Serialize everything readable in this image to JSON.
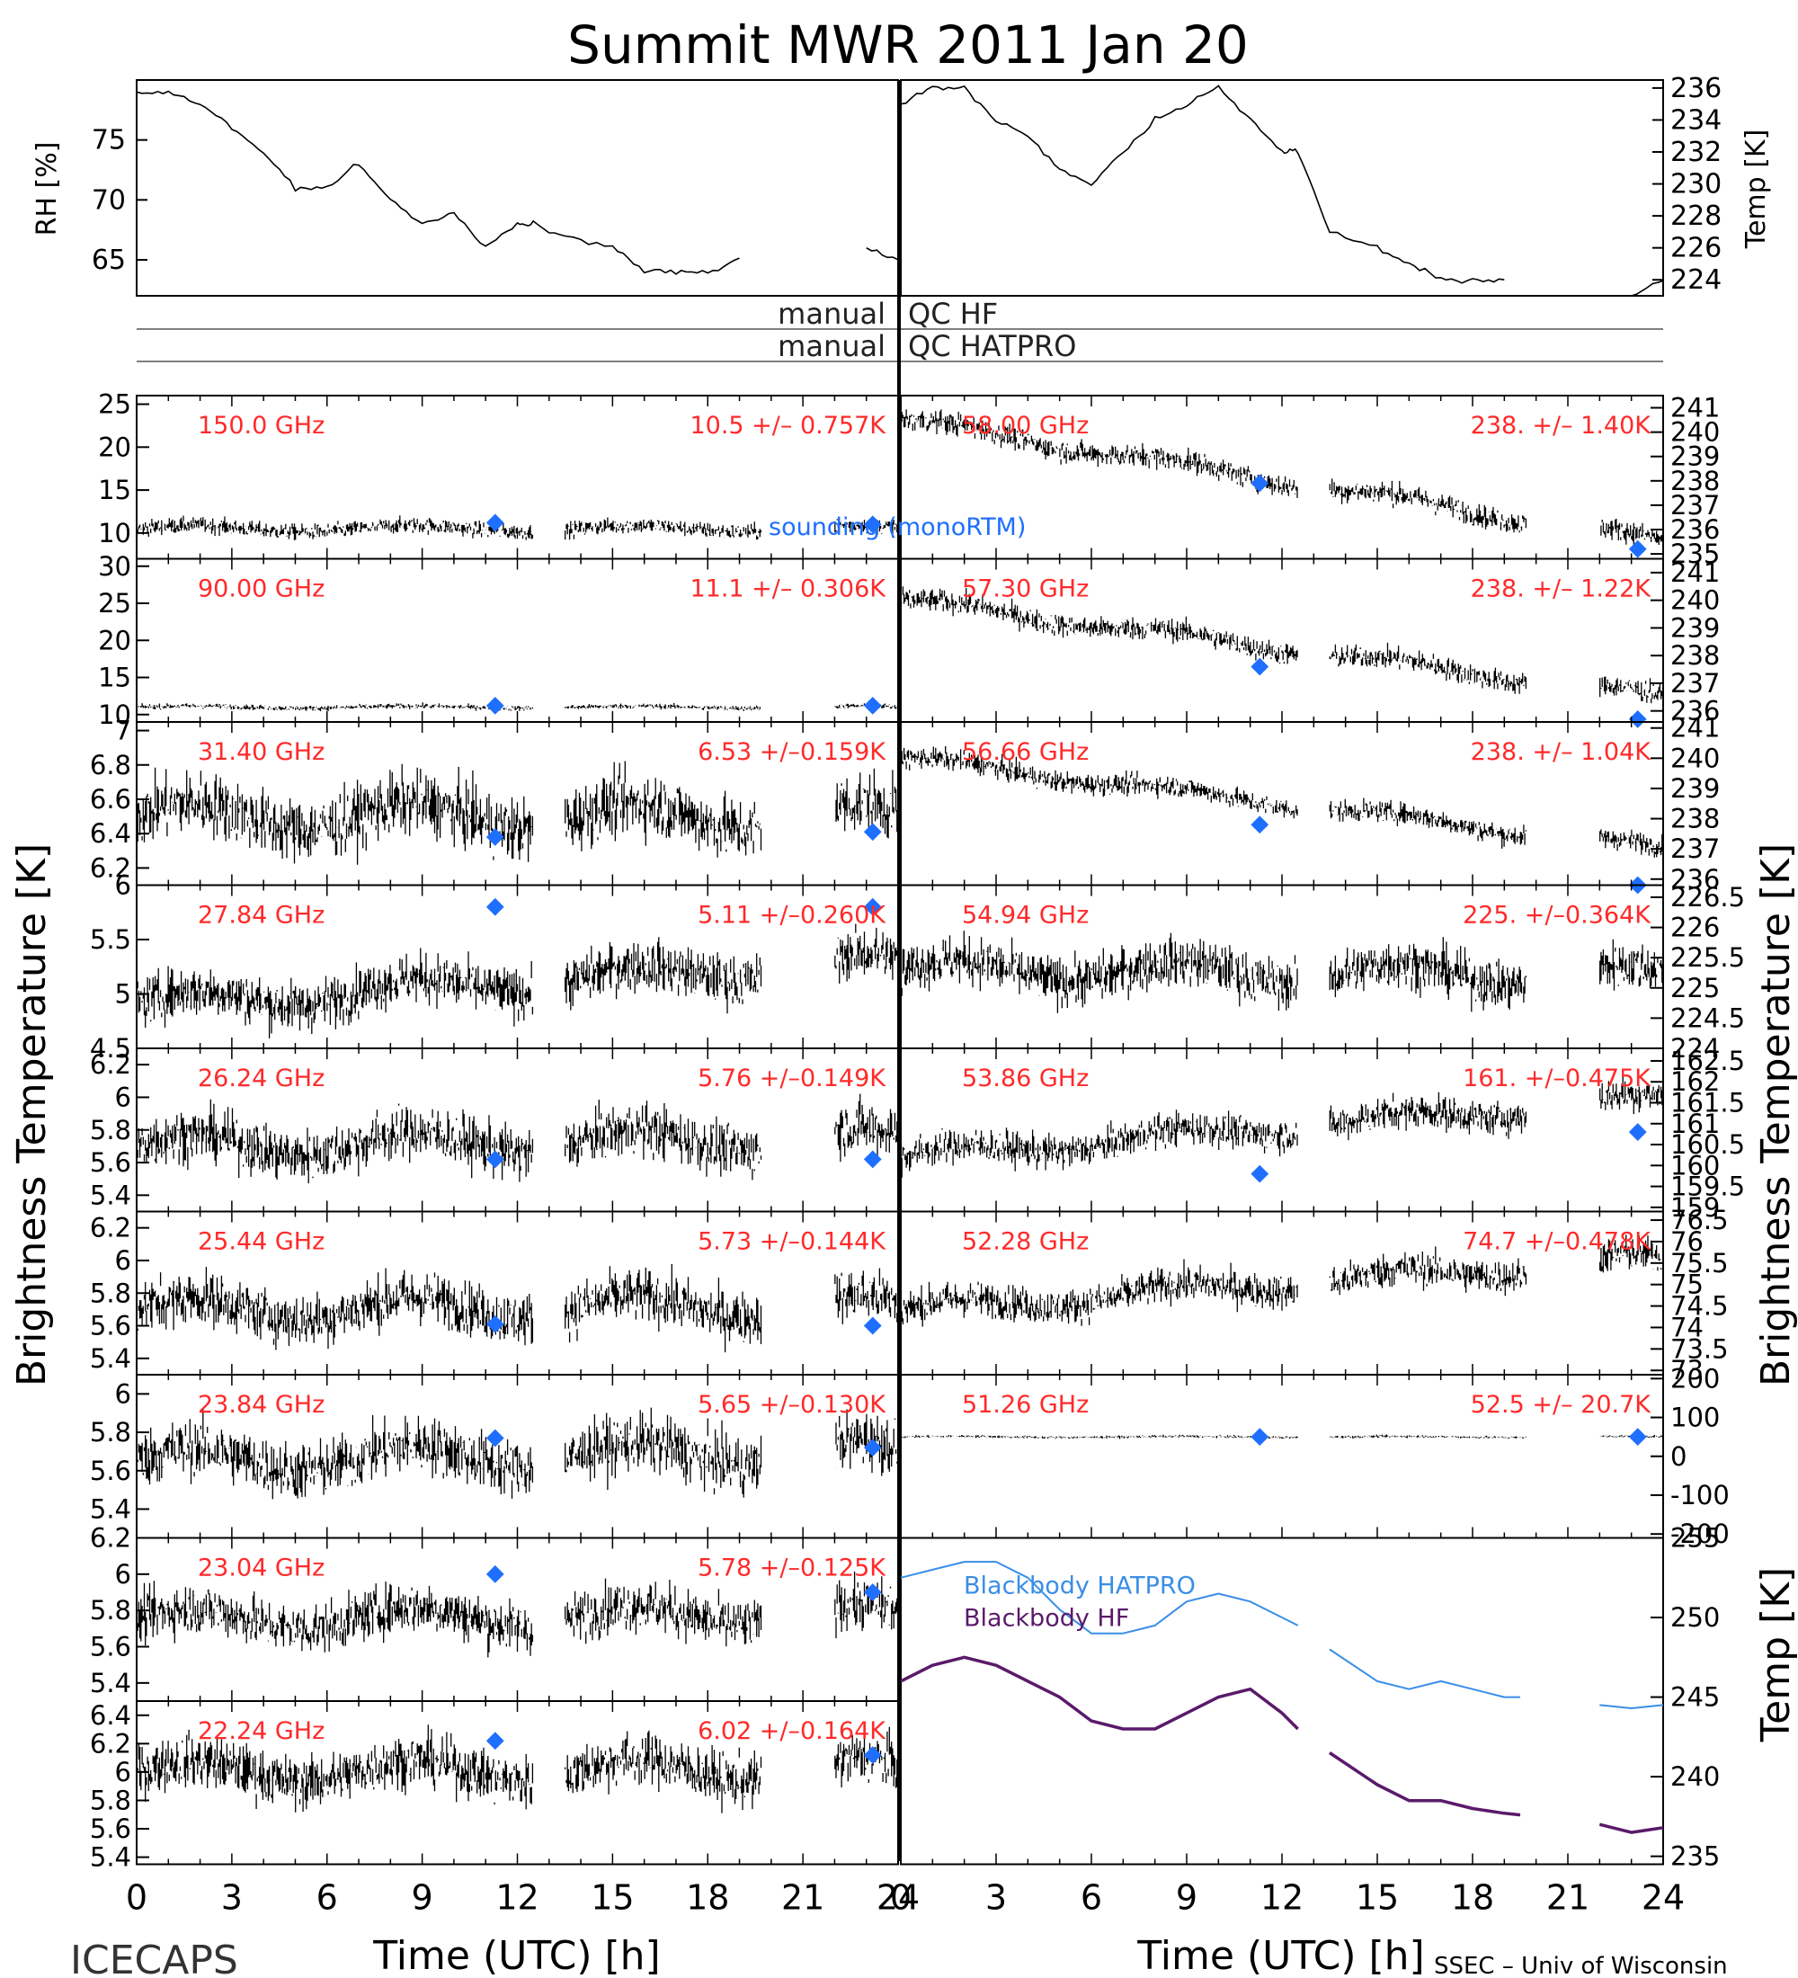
{
  "title": "Summit MWR 2011 Jan 20",
  "footer_left": "ICECAPS",
  "footer_right": "SSEC – Univ of Wisconsin",
  "colors": {
    "trace": "#000000",
    "label": "#ff2a2a",
    "sounding": "#1f6fff",
    "bb_hatpro": "#3a8ee6",
    "bb_hf": "#5a1a6a"
  },
  "common": {
    "x_label": "Time (UTC) [h]",
    "x_ticks": [
      "0",
      "3",
      "6",
      "9",
      "12",
      "15",
      "18",
      "21",
      "24"
    ],
    "y_label_tb": "Brightness Temperature [K]",
    "y_label_temp": "Temp [K]",
    "sounding_label": "sounding (monoRTM)"
  },
  "qc": {
    "row1": "manual",
    "row1_r": "QC HF",
    "row2": "manual",
    "row2_r": "QC HATPRO"
  },
  "met": {
    "rh_label": "RH [%]",
    "rh_ticks": [
      "65",
      "70",
      "75"
    ],
    "temp_label": "Temp [K]",
    "temp_ticks": [
      "224",
      "226",
      "228",
      "230",
      "232",
      "234",
      "236"
    ]
  },
  "chart_data": [
    {
      "id": "rh",
      "type": "line",
      "ylabel": "RH [%]",
      "ylim": [
        62,
        80
      ],
      "x": [
        0,
        1,
        2,
        3,
        4,
        5,
        6,
        7,
        8,
        9,
        10,
        11,
        12,
        12.5,
        13.5,
        15,
        16,
        17,
        18,
        19,
        19.5,
        22,
        23,
        24
      ],
      "y": [
        79,
        79,
        78,
        76,
        74,
        71,
        71,
        73,
        70,
        68,
        69,
        66,
        68,
        68,
        67,
        66,
        64,
        64,
        64,
        65,
        null,
        null,
        66,
        65
      ]
    },
    {
      "id": "temp",
      "type": "line",
      "ylabel": "Temp [K]",
      "ylim": [
        223,
        236.5
      ],
      "x": [
        0,
        1,
        2,
        3,
        4,
        5,
        6,
        7,
        8,
        9,
        10,
        11,
        12,
        12.5,
        13.5,
        15,
        16,
        17,
        18,
        19,
        19.5,
        22,
        23,
        24
      ],
      "y": [
        235,
        236,
        236,
        234,
        233,
        231,
        230,
        232,
        234,
        235,
        236,
        234,
        232,
        232,
        227,
        226,
        225,
        224,
        224,
        224,
        null,
        null,
        223,
        224
      ]
    },
    {
      "id": "150",
      "type": "scatter",
      "freq": "150.0 GHz",
      "stat": "10.5 +/– 0.757K",
      "ylim": [
        7,
        26
      ],
      "yticks": [
        10,
        15,
        20,
        25
      ],
      "base": [
        10.5,
        10.5
      ],
      "noise": 0.8,
      "sounding": [
        [
          11.3,
          11.2
        ],
        [
          23.2,
          11
        ]
      ]
    },
    {
      "id": "90",
      "type": "scatter",
      "freq": "90.00 GHz",
      "stat": "11.1 +/– 0.306K",
      "ylim": [
        9,
        31
      ],
      "yticks": [
        10,
        15,
        20,
        25,
        30
      ],
      "base": [
        11,
        11
      ],
      "noise": 0.3,
      "sounding": [
        [
          11.3,
          11.2
        ],
        [
          23.2,
          11.2
        ]
      ]
    },
    {
      "id": "31",
      "type": "scatter",
      "freq": "31.40 GHz",
      "stat": "6.53 +/–0.159K",
      "ylim": [
        6.1,
        7.05
      ],
      "yticks": [
        6.2,
        6.4,
        6.6,
        6.8,
        7.0
      ],
      "base": [
        6.5,
        6.5
      ],
      "noise": 0.16,
      "sounding": [
        [
          11.3,
          6.38
        ],
        [
          23.2,
          6.41
        ]
      ]
    },
    {
      "id": "27",
      "type": "scatter",
      "freq": "27.84 GHz",
      "stat": "5.11 +/–0.260K",
      "ylim": [
        4.5,
        6.0
      ],
      "yticks": [
        4.5,
        5.0,
        5.5,
        6.0
      ],
      "base": [
        4.9,
        5.3
      ],
      "noise": 0.2,
      "sounding": [
        [
          11.3,
          5.8
        ],
        [
          23.2,
          5.8
        ]
      ]
    },
    {
      "id": "26",
      "type": "scatter",
      "freq": "26.24 GHz",
      "stat": "5.76 +/–0.149K",
      "ylim": [
        5.3,
        6.3
      ],
      "yticks": [
        5.4,
        5.6,
        5.8,
        6.0,
        6.2
      ],
      "base": [
        5.7,
        5.75
      ],
      "noise": 0.14,
      "sounding": [
        [
          11.3,
          5.62
        ],
        [
          23.2,
          5.62
        ]
      ]
    },
    {
      "id": "25",
      "type": "scatter",
      "freq": "25.44 GHz",
      "stat": "5.73 +/–0.144K",
      "ylim": [
        5.3,
        6.3
      ],
      "yticks": [
        5.4,
        5.6,
        5.8,
        6.0,
        6.2
      ],
      "base": [
        5.7,
        5.72
      ],
      "noise": 0.14,
      "sounding": [
        [
          11.3,
          5.61
        ],
        [
          23.2,
          5.6
        ]
      ]
    },
    {
      "id": "23.84",
      "type": "scatter",
      "freq": "23.84 GHz",
      "stat": "5.65 +/–0.130K",
      "ylim": [
        5.25,
        6.1
      ],
      "yticks": [
        5.4,
        5.6,
        5.8,
        6.0
      ],
      "base": [
        5.65,
        5.7
      ],
      "noise": 0.13,
      "sounding": [
        [
          11.3,
          5.77
        ],
        [
          23.2,
          5.72
        ]
      ]
    },
    {
      "id": "23.04",
      "type": "scatter",
      "freq": "23.04 GHz",
      "stat": "5.78 +/–0.125K",
      "ylim": [
        5.3,
        6.2
      ],
      "yticks": [
        5.4,
        5.6,
        5.8,
        6.0,
        6.2
      ],
      "base": [
        5.75,
        5.78
      ],
      "noise": 0.12,
      "sounding": [
        [
          11.3,
          6.0
        ],
        [
          23.2,
          5.9
        ]
      ]
    },
    {
      "id": "22.24",
      "type": "scatter",
      "freq": "22.24 GHz",
      "stat": "6.02 +/–0.164K",
      "ylim": [
        5.35,
        6.5
      ],
      "yticks": [
        5.4,
        5.6,
        5.8,
        6.0,
        6.2,
        6.4
      ],
      "base": [
        6.0,
        6.02
      ],
      "noise": 0.16,
      "sounding": [
        [
          11.3,
          6.22
        ],
        [
          23.2,
          6.12
        ]
      ]
    },
    {
      "id": "58",
      "type": "scatter",
      "freq": "58.00 GHz",
      "stat": "238. +/– 1.40K",
      "ylim": [
        234.8,
        241.5
      ],
      "yticks": [
        235,
        236,
        237,
        238,
        239,
        240,
        241
      ],
      "base": [
        240.5,
        235.5
      ],
      "noise": 0.4,
      "sounding": [
        [
          11.3,
          237.9
        ],
        [
          23.2,
          235.2
        ]
      ]
    },
    {
      "id": "57.3",
      "type": "scatter",
      "freq": "57.30 GHz",
      "stat": "238. +/– 1.22K",
      "ylim": [
        235.6,
        241.5
      ],
      "yticks": [
        236,
        237,
        238,
        239,
        240,
        241
      ],
      "base": [
        240,
        236.5
      ],
      "noise": 0.35,
      "sounding": [
        [
          11.3,
          237.6
        ],
        [
          23.2,
          235.7
        ]
      ]
    },
    {
      "id": "56.66",
      "type": "scatter",
      "freq": "56.66 GHz",
      "stat": "238. +/– 1.04K",
      "ylim": [
        235.8,
        241.2
      ],
      "yticks": [
        236,
        237,
        238,
        239,
        240,
        241
      ],
      "base": [
        240,
        237
      ],
      "noise": 0.3,
      "sounding": [
        [
          11.3,
          237.8
        ],
        [
          23.2,
          235.8
        ]
      ]
    },
    {
      "id": "54.94",
      "type": "scatter",
      "freq": "54.94 GHz",
      "stat": "225. +/–0.364K",
      "ylim": [
        224,
        226.7
      ],
      "yticks": [
        224,
        224.5,
        225,
        225.5,
        226,
        226.5
      ],
      "base": [
        225.3,
        225.2
      ],
      "noise": 0.35,
      "sounding": []
    },
    {
      "id": "53.86",
      "type": "scatter",
      "freq": "53.86 GHz",
      "stat": "161. +/–0.475K",
      "ylim": [
        158.9,
        162.8
      ],
      "yticks": [
        159,
        159.5,
        160,
        160.5,
        161,
        161.5,
        162,
        162.5
      ],
      "base": [
        160.2,
        161.6
      ],
      "noise": 0.35,
      "sounding": [
        [
          11.3,
          159.8
        ],
        [
          23.2,
          160.8
        ]
      ]
    },
    {
      "id": "52.28",
      "type": "scatter",
      "freq": "52.28 GHz",
      "stat": "74.7 +/–0.478K",
      "ylim": [
        72.9,
        76.7
      ],
      "yticks": [
        73,
        73.5,
        74,
        74.5,
        75,
        75.5,
        76,
        76.5
      ],
      "base": [
        74.4,
        75.6
      ],
      "noise": 0.35,
      "sounding": []
    },
    {
      "id": "51.26",
      "type": "scatter",
      "freq": "51.26 GHz",
      "stat": "52.5 +/– 20.7K",
      "ylim": [
        -210,
        210
      ],
      "yticks": [
        -200,
        -100,
        0,
        100,
        200
      ],
      "base": [
        50,
        50
      ],
      "noise": 3,
      "sounding": [
        [
          11.3,
          50
        ],
        [
          23.2,
          50
        ]
      ]
    },
    {
      "id": "bb",
      "type": "line",
      "ylabel": "Temp [K]",
      "ylim": [
        234.5,
        255
      ],
      "yticks": [
        235,
        240,
        245,
        250,
        255
      ],
      "series": [
        {
          "name": "Blackbody HATPRO",
          "x": [
            0,
            1,
            2,
            3,
            4,
            5,
            6,
            7,
            8,
            9,
            10,
            11,
            12,
            12.5,
            13.5,
            15,
            16,
            17,
            18,
            19,
            19.5,
            22,
            23,
            24
          ],
          "y": [
            252.5,
            253,
            253.5,
            253.5,
            252.5,
            250.5,
            249,
            249,
            249.5,
            251,
            251.5,
            251,
            250,
            249.5,
            248,
            246,
            245.5,
            246,
            245.5,
            245,
            245,
            244.5,
            244.3,
            244.5
          ]
        },
        {
          "name": "Blackbody HF",
          "x": [
            0,
            1,
            2,
            3,
            4,
            5,
            6,
            7,
            8,
            9,
            10,
            11,
            12,
            12.5,
            13.5,
            15,
            16,
            17,
            18,
            19,
            19.5,
            22,
            23,
            24
          ],
          "y": [
            246,
            247,
            247.5,
            247,
            246,
            245,
            243.5,
            243,
            243,
            244,
            245,
            245.5,
            244,
            243,
            241.5,
            239.5,
            238.5,
            238.5,
            238,
            237.7,
            237.6,
            237,
            236.5,
            236.8
          ]
        }
      ]
    }
  ]
}
